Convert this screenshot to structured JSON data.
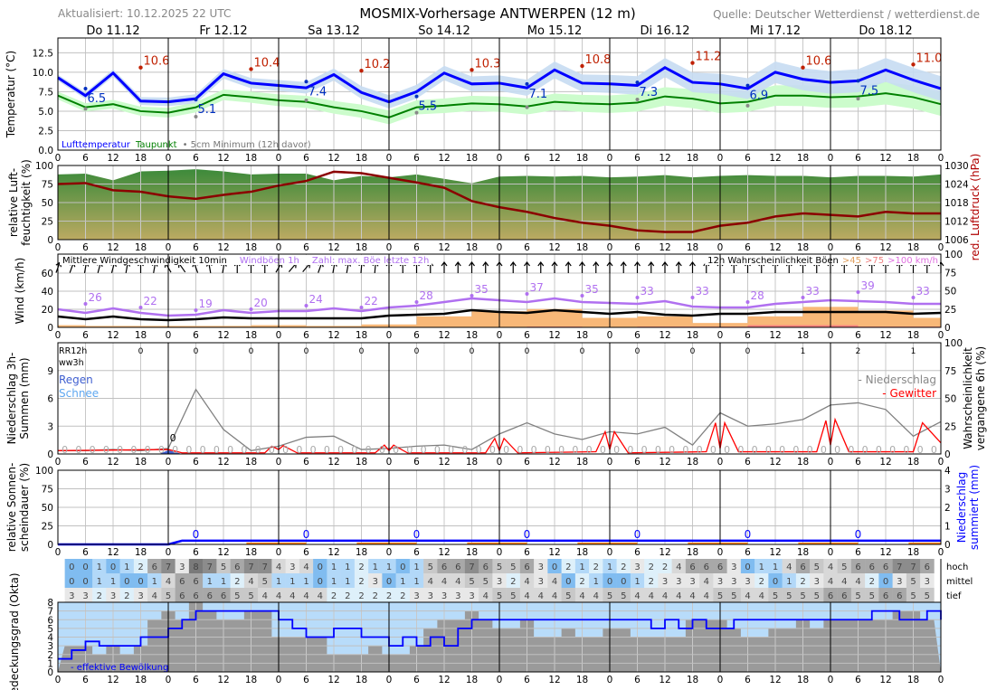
{
  "header": {
    "updated": "Aktualisiert: 10.12.2025 22 UTC",
    "title": "MOSMIX-Vorhersage ANTWERPEN (12 m)",
    "source": "Quelle: Deutscher Wetterdienst / wetterdienst.de"
  },
  "days": [
    "Do 11.12",
    "Fr 12.12",
    "Sa 13.12",
    "So 14.12",
    "Mo 15.12",
    "Di 16.12",
    "Mi 17.12",
    "Do 18.12"
  ],
  "colors": {
    "temp": "#0000ff",
    "dew": "#008000",
    "tempBand": "#c6dcf2",
    "dewBand": "#ccfccc",
    "pressure": "#8b0000",
    "gust": "#b070f0",
    "wind": "#000000",
    "gust45": "#f8b878",
    "gust75": "#f88080",
    "precipProb": "#808080",
    "thunder": "#ff0000",
    "rain": "#4060d0",
    "snow": "#60a8f0",
    "effCloud": "#0000ff",
    "maxLabel": "#c02000",
    "minLabel": "#0030c0"
  },
  "chart_data": [
    {
      "type": "line",
      "ylabel": "Temperatur (°C)",
      "ylim": [
        0,
        14.4
      ],
      "yticks": [
        "0.0",
        "2.5",
        "5.0",
        "7.5",
        "10.0",
        "12.5"
      ],
      "x_hours_step": 6,
      "hour_ticks": [
        "0",
        "6",
        "12",
        "18"
      ],
      "legend": {
        "temp": "Lufttemperatur",
        "dew": "Taupunkt",
        "min5cm": "• 5cm Minimum (12h davor)"
      },
      "series": [
        {
          "name": "Lufttemperatur",
          "values": [
            9.3,
            7.0,
            9.9,
            6.3,
            6.2,
            6.6,
            9.8,
            8.6,
            8.3,
            8.0,
            9.7,
            7.4,
            6.2,
            7.5,
            9.9,
            8.5,
            8.6,
            8.0,
            10.3,
            8.6,
            8.5,
            8.3,
            10.6,
            8.7,
            8.5,
            7.9,
            10.0,
            9.1,
            8.7,
            8.9,
            10.3,
            9.0,
            7.9
          ]
        },
        {
          "name": "Taupunkt",
          "values": [
            7.0,
            5.5,
            5.9,
            5.0,
            4.8,
            5.5,
            7.1,
            6.8,
            6.4,
            6.2,
            5.5,
            5.0,
            4.2,
            5.5,
            5.7,
            6.0,
            5.9,
            5.6,
            6.2,
            6.0,
            5.9,
            6.1,
            6.9,
            6.6,
            6.0,
            6.2,
            7.0,
            7.0,
            6.8,
            6.9,
            7.3,
            6.8,
            5.9
          ]
        }
      ],
      "max_labels": [
        {
          "h": 18,
          "v": "10.6"
        },
        {
          "h": 42,
          "v": "10.4"
        },
        {
          "h": 66,
          "v": "10.2"
        },
        {
          "h": 90,
          "v": "10.3"
        },
        {
          "h": 114,
          "v": "10.8"
        },
        {
          "h": 138,
          "v": "11.2"
        },
        {
          "h": 162,
          "v": "10.6"
        },
        {
          "h": 186,
          "v": "11.0"
        }
      ],
      "min_labels": [
        {
          "h": 6,
          "v": "6.5"
        },
        {
          "h": 30,
          "v": "5.1"
        },
        {
          "h": 54,
          "v": "7.4"
        },
        {
          "h": 78,
          "v": "5.5"
        },
        {
          "h": 102,
          "v": "7.1"
        },
        {
          "h": 126,
          "v": "7.3"
        },
        {
          "h": 150,
          "v": "6.9"
        },
        {
          "h": 174,
          "v": "7.5"
        }
      ],
      "min5cm": [
        {
          "h": 6,
          "v": 5.3
        },
        {
          "h": 30,
          "v": 4.3
        },
        {
          "h": 54,
          "v": 6.4
        },
        {
          "h": 78,
          "v": 4.8
        },
        {
          "h": 102,
          "v": 5.5
        },
        {
          "h": 126,
          "v": 6.5
        },
        {
          "h": 150,
          "v": 5.7
        },
        {
          "h": 174,
          "v": 6.6
        }
      ]
    },
    {
      "type": "area",
      "ylabel": "relative Luft-feuchtigkeit (%)",
      "ylabel2": "red. Luftdruck (hPa)",
      "ylim": [
        0,
        100
      ],
      "yticks": [
        "0",
        "25",
        "50",
        "75",
        "100"
      ],
      "y2lim": [
        1006,
        1030
      ],
      "y2ticks": [
        "1006",
        "1012",
        "1018",
        "1024",
        "1030"
      ],
      "humidity": [
        88,
        89,
        80,
        92,
        93,
        95,
        92,
        88,
        89,
        89,
        80,
        86,
        84,
        88,
        82,
        76,
        85,
        86,
        85,
        86,
        84,
        85,
        87,
        84,
        86,
        87,
        86,
        86,
        84,
        86,
        86,
        85,
        88
      ],
      "pressure": [
        1024,
        1024.3,
        1022,
        1021.5,
        1020,
        1019.2,
        1020.5,
        1021.5,
        1023.5,
        1025,
        1028,
        1027.5,
        1026,
        1024.5,
        1022.8,
        1018.5,
        1016.5,
        1015,
        1013,
        1011.5,
        1010.5,
        1009,
        1008.5,
        1008.5,
        1010.5,
        1011.5,
        1013.5,
        1014.5,
        1014,
        1013.5,
        1015,
        1014.5,
        1014.5
      ]
    },
    {
      "type": "line",
      "ylabel": "Wind (km/h)",
      "ylim": [
        0,
        81
      ],
      "yticks": [
        "0",
        "20",
        "40",
        "60"
      ],
      "y2lim": [
        0,
        100
      ],
      "y2ticks": [
        "0",
        "25",
        "50",
        "75",
        "100"
      ],
      "legend": {
        "wind": "Mittlere Windgeschwindigkeit 10min",
        "gust": "Windböen 1h",
        "maxgust": "Zahl: max. Böe letzte 12h",
        "prob": "12h Wahrscheinlichkeit Böen",
        "p45": ">45",
        "p75": ">75",
        "p100": ">100 km/h"
      },
      "mean_wind": [
        12,
        9,
        12,
        9,
        8,
        9,
        11,
        10,
        10,
        10,
        10,
        10,
        13,
        14,
        15,
        19,
        17,
        16,
        19,
        17,
        15,
        17,
        14,
        13,
        15,
        15,
        17,
        17,
        17,
        17,
        17,
        15,
        16
      ],
      "gusts": [
        20,
        16,
        21,
        16,
        13,
        14,
        19,
        16,
        18,
        18,
        21,
        18,
        22,
        24,
        28,
        32,
        30,
        28,
        32,
        28,
        27,
        26,
        29,
        23,
        22,
        22,
        26,
        28,
        30,
        29,
        28,
        26,
        26
      ],
      "max_gust_labels": [
        {
          "h": 6,
          "v": "26"
        },
        {
          "h": 18,
          "v": "22"
        },
        {
          "h": 30,
          "v": "19"
        },
        {
          "h": 42,
          "v": "20"
        },
        {
          "h": 54,
          "v": "24"
        },
        {
          "h": 66,
          "v": "22"
        },
        {
          "h": 78,
          "v": "28"
        },
        {
          "h": 90,
          "v": "35"
        },
        {
          "h": 102,
          "v": "37"
        },
        {
          "h": 114,
          "v": "35"
        },
        {
          "h": 126,
          "v": "33"
        },
        {
          "h": 138,
          "v": "33"
        },
        {
          "h": 150,
          "v": "28"
        },
        {
          "h": 162,
          "v": "33"
        },
        {
          "h": 174,
          "v": "39"
        },
        {
          "h": 186,
          "v": "33"
        }
      ],
      "gust_prob_blocks": [
        {
          "from": 0,
          "to": 6,
          "p45": 3,
          "p75": 0
        },
        {
          "from": 6,
          "to": 18,
          "p45": 2,
          "p75": 0
        },
        {
          "from": 18,
          "to": 30,
          "p45": 2,
          "p75": 0
        },
        {
          "from": 30,
          "to": 42,
          "p45": 2,
          "p75": 0
        },
        {
          "from": 42,
          "to": 54,
          "p45": 3,
          "p75": 0
        },
        {
          "from": 54,
          "to": 66,
          "p45": 2,
          "p75": 0
        },
        {
          "from": 66,
          "to": 78,
          "p45": 4,
          "p75": 0
        },
        {
          "from": 78,
          "to": 90,
          "p45": 15,
          "p75": 0
        },
        {
          "from": 90,
          "to": 102,
          "p45": 22,
          "p75": 0
        },
        {
          "from": 102,
          "to": 114,
          "p45": 25,
          "p75": 1
        },
        {
          "from": 114,
          "to": 126,
          "p45": 13,
          "p75": 0
        },
        {
          "from": 126,
          "to": 138,
          "p45": 15,
          "p75": 1
        },
        {
          "from": 138,
          "to": 150,
          "p45": 6,
          "p75": 1
        },
        {
          "from": 150,
          "to": 162,
          "p45": 15,
          "p75": 3
        },
        {
          "from": 162,
          "to": 174,
          "p45": 28,
          "p75": 3
        },
        {
          "from": 174,
          "to": 186,
          "p45": 23,
          "p75": 1
        },
        {
          "from": 186,
          "to": 192,
          "p45": 13,
          "p75": 1
        }
      ],
      "wind_arrow_tilt_deg": [
        20,
        20,
        10,
        15,
        15,
        10,
        0,
        10,
        -30,
        -35,
        -20,
        -10,
        10,
        0,
        0,
        0,
        30,
        40,
        40,
        20,
        10,
        10,
        5,
        5,
        0,
        0,
        0,
        0,
        0,
        0,
        0,
        0,
        0,
        0,
        0,
        0,
        0,
        0,
        0,
        0,
        0,
        0,
        0,
        0,
        0,
        0,
        0,
        0,
        0,
        0,
        0,
        0,
        0,
        0,
        0,
        0,
        0,
        0,
        0,
        0,
        0,
        0,
        0,
        0,
        0
      ]
    },
    {
      "type": "line",
      "ylabel": "Niederschlag 3h-Summen (mm)",
      "ylabel2": "Wahrscheinlichkeit vergangene 6h (%)",
      "ylim": [
        0,
        12
      ],
      "yticks": [
        "0",
        "3",
        "6",
        "9"
      ],
      "y2lim": [
        0,
        100
      ],
      "y2ticks": [
        "0",
        "25",
        "50",
        "75",
        "100"
      ],
      "labels": {
        "rr12h": "RR12h",
        "ww3h": "ww3h",
        "rain": "Regen",
        "snow": "Schnee",
        "precip": "- Niederschlag",
        "thunder": "- Gewitter",
        "rain_amount": "0"
      },
      "rr12h": [
        {
          "h": 18,
          "v": "0"
        },
        {
          "h": 30,
          "v": "0"
        },
        {
          "h": 42,
          "v": "0"
        },
        {
          "h": 54,
          "v": "0"
        },
        {
          "h": 66,
          "v": "0"
        },
        {
          "h": 78,
          "v": "0"
        },
        {
          "h": 90,
          "v": "0"
        },
        {
          "h": 102,
          "v": "0"
        },
        {
          "h": 114,
          "v": "0"
        },
        {
          "h": 126,
          "v": "0"
        },
        {
          "h": 138,
          "v": "0"
        },
        {
          "h": 150,
          "v": "0"
        },
        {
          "h": 162,
          "v": "1"
        },
        {
          "h": 174,
          "v": "2"
        },
        {
          "h": 186,
          "v": "1"
        }
      ],
      "ww3h_value": "0",
      "precip_prob_6h": [
        3,
        3,
        4,
        3,
        5,
        58,
        22,
        3,
        7,
        15,
        16,
        4,
        5,
        7,
        8,
        4,
        18,
        28,
        18,
        13,
        20,
        18,
        24,
        8,
        37,
        25,
        27,
        31,
        44,
        46,
        40,
        16,
        29
      ],
      "thunder_prob": [
        {
          "h": 0,
          "v": 3
        },
        {
          "h": 24,
          "v": 4
        },
        {
          "h": 27,
          "v": 1
        },
        {
          "h": 45,
          "v": 1
        },
        {
          "h": 46.5,
          "v": 7
        },
        {
          "h": 48,
          "v": 4
        },
        {
          "h": 49,
          "v": 7.5
        },
        {
          "h": 52,
          "v": 1
        },
        {
          "h": 69,
          "v": 1
        },
        {
          "h": 71,
          "v": 8
        },
        {
          "h": 72,
          "v": 3
        },
        {
          "h": 73,
          "v": 8
        },
        {
          "h": 76,
          "v": 1
        },
        {
          "h": 93,
          "v": 1
        },
        {
          "h": 95,
          "v": 14
        },
        {
          "h": 96,
          "v": 3
        },
        {
          "h": 97,
          "v": 14
        },
        {
          "h": 100,
          "v": 1
        },
        {
          "h": 117,
          "v": 2
        },
        {
          "h": 119,
          "v": 20
        },
        {
          "h": 120,
          "v": 4
        },
        {
          "h": 121,
          "v": 20
        },
        {
          "h": 124,
          "v": 1
        },
        {
          "h": 141,
          "v": 2
        },
        {
          "h": 143,
          "v": 28
        },
        {
          "h": 144,
          "v": 5
        },
        {
          "h": 145,
          "v": 28
        },
        {
          "h": 148,
          "v": 2
        },
        {
          "h": 165,
          "v": 2
        },
        {
          "h": 167,
          "v": 30
        },
        {
          "h": 168,
          "v": 8
        },
        {
          "h": 169,
          "v": 31
        },
        {
          "h": 172,
          "v": 2
        },
        {
          "h": 186,
          "v": 2
        },
        {
          "h": 188,
          "v": 28
        },
        {
          "h": 192,
          "v": 10
        }
      ],
      "rain_mm": [
        {
          "h": 22,
          "v": 0
        },
        {
          "h": 24,
          "v": 0.4
        },
        {
          "h": 27,
          "v": 0
        }
      ]
    },
    {
      "type": "line",
      "ylabel": "relative Sonnen-scheindauer (%)",
      "ylabel2": "Niederschlag summiert (mm)",
      "ylim": [
        0,
        100
      ],
      "yticks": [
        "0",
        "25",
        "50",
        "75",
        "100"
      ],
      "y2lim": [
        0,
        4
      ],
      "y2ticks": [
        "0",
        "1",
        "2",
        "3",
        "4"
      ],
      "sunshine_pct": 0,
      "precip_sum_mm": [
        {
          "h": 0,
          "v": 0
        },
        {
          "h": 24,
          "v": 0
        },
        {
          "h": 27,
          "v": 0.2
        },
        {
          "h": 192,
          "v": 0.2
        }
      ],
      "sum_labels": [
        {
          "h": 30,
          "v": "0"
        },
        {
          "h": 54,
          "v": "0"
        },
        {
          "h": 78,
          "v": "0"
        },
        {
          "h": 102,
          "v": "0"
        },
        {
          "h": 126,
          "v": "0"
        },
        {
          "h": 150,
          "v": "0"
        },
        {
          "h": 174,
          "v": "0"
        }
      ],
      "orange_segments": [
        [
          41,
          54
        ],
        [
          65,
          78
        ],
        [
          89,
          102
        ],
        [
          113,
          126
        ],
        [
          137,
          150
        ],
        [
          161,
          174
        ],
        [
          185,
          192
        ]
      ]
    },
    {
      "type": "heatmap",
      "ylabel": "Bedeckungsgrad (Okta)",
      "ylim": [
        0,
        8
      ],
      "yticks": [
        "0",
        "1",
        "2",
        "3",
        "4",
        "5",
        "6",
        "7",
        "8"
      ],
      "row_labels": [
        "hoch",
        "mittel",
        "tief"
      ],
      "legend": "- effektive Bewölkung",
      "hoch": [
        0,
        0,
        1,
        0,
        1,
        2,
        6,
        7,
        3,
        8,
        7,
        5,
        6,
        7,
        7,
        4,
        3,
        4,
        0,
        1,
        1,
        2,
        1,
        1,
        0,
        1,
        5,
        6,
        6,
        7,
        6,
        5,
        5,
        6,
        3,
        0,
        2,
        1,
        2,
        1,
        2,
        3,
        2,
        2,
        4,
        6,
        6,
        6,
        3,
        0,
        1,
        1,
        4,
        6,
        5,
        4,
        5,
        6,
        6,
        6,
        7,
        7,
        6
      ],
      "mittel": [
        0,
        0,
        1,
        1,
        0,
        0,
        1,
        4,
        6,
        6,
        1,
        1,
        2,
        4,
        5,
        1,
        1,
        1,
        0,
        1,
        1,
        2,
        3,
        0,
        1,
        1,
        4,
        4,
        4,
        5,
        5,
        3,
        2,
        4,
        3,
        4,
        0,
        2,
        1,
        0,
        0,
        1,
        2,
        3,
        3,
        3,
        4,
        3,
        3,
        3,
        2,
        0,
        1,
        2,
        3,
        4,
        4,
        4,
        2,
        0,
        3,
        5,
        3
      ],
      "tief": [
        3,
        3,
        2,
        3,
        2,
        3,
        4,
        5,
        6,
        6,
        6,
        6,
        5,
        5,
        4,
        4,
        4,
        4,
        4,
        2,
        2,
        2,
        2,
        2,
        2,
        3,
        3,
        3,
        3,
        3,
        4,
        5,
        5,
        4,
        4,
        4,
        5,
        4,
        4,
        5,
        5,
        4,
        4,
        4,
        4,
        4,
        4,
        5,
        5,
        4,
        4,
        5,
        5,
        5,
        5,
        6,
        6,
        5,
        5,
        6,
        6,
        5,
        5
      ],
      "effective": [
        1.5,
        2.5,
        3.5,
        3,
        3,
        3,
        4,
        4,
        5,
        6,
        7,
        7,
        7,
        7,
        7,
        7,
        6,
        5,
        4,
        4,
        5,
        5,
        4,
        4,
        3,
        4,
        3,
        4,
        3,
        5,
        6,
        6,
        6,
        6,
        6,
        6,
        6,
        6,
        6,
        6,
        6,
        6,
        6,
        5,
        6,
        5,
        6,
        5,
        5,
        6,
        6,
        6,
        6,
        6,
        6,
        6,
        6,
        6,
        6,
        7,
        7,
        6,
        6,
        7,
        6
      ]
    }
  ]
}
